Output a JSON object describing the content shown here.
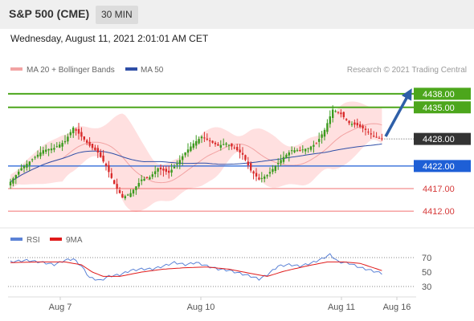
{
  "header": {
    "title": "S&P 500 (CME)",
    "timeframe": "30 MIN"
  },
  "datetime": "Wednesday, August 11, 2021 2:01:01 AM CET",
  "legend": {
    "ma20_label": "MA 20 + Bollinger Bands",
    "ma50_label": "MA 50",
    "credit": "Research © 2021 Trading Central",
    "rsi_label": "RSI",
    "rsi_ma_label": "9MA"
  },
  "colors": {
    "bullish": "#3a9b1e",
    "bearish": "#d92b2b",
    "bollinger": "#ffd6d6",
    "ma20": "#f2a3a3",
    "ma50": "#2f4fa7",
    "resistance": "#4ca61c",
    "pivot": "#1e5fd6",
    "support": "#f27070",
    "arrow": "#2e5fa8",
    "rsi": "#5b82d6",
    "rsi_ma": "#e01a1a"
  },
  "chart_data": [
    {
      "type": "candlestick",
      "ylim": [
        4409,
        4441
      ],
      "xlabels": [
        "Aug 7",
        "Aug 10",
        "Aug 11",
        "Aug 16"
      ],
      "levels": [
        {
          "value": 4438.0,
          "label": "4438.00",
          "kind": "resistance"
        },
        {
          "value": 4435.0,
          "label": "4435.00",
          "kind": "resistance"
        },
        {
          "value": 4428.0,
          "label": "4428.00",
          "kind": "last"
        },
        {
          "value": 4422.0,
          "label": "4422.00",
          "kind": "pivot"
        },
        {
          "value": 4417.0,
          "label": "4417.00",
          "kind": "support"
        },
        {
          "value": 4412.0,
          "label": "4412.00",
          "kind": "support"
        }
      ],
      "anchors": [
        [
          0,
          4418.5
        ],
        [
          4,
          4421.5
        ],
        [
          8,
          4423.5
        ],
        [
          12,
          4425.5
        ],
        [
          16,
          4426
        ],
        [
          20,
          4427.5
        ],
        [
          23,
          4430.5
        ],
        [
          26,
          4428.5
        ],
        [
          29,
          4426.5
        ],
        [
          32,
          4425
        ],
        [
          35,
          4422
        ],
        [
          38,
          4418
        ],
        [
          41,
          4415
        ],
        [
          44,
          4416
        ],
        [
          48,
          4419
        ],
        [
          51,
          4419.5
        ],
        [
          54,
          4421.5
        ],
        [
          58,
          4420.5
        ],
        [
          61,
          4422.5
        ],
        [
          64,
          4425
        ],
        [
          67,
          4427
        ],
        [
          70,
          4428.5
        ],
        [
          73,
          4427.5
        ],
        [
          76,
          4426.5
        ],
        [
          79,
          4427
        ],
        [
          82,
          4426
        ],
        [
          85,
          4424.5
        ],
        [
          88,
          4421
        ],
        [
          91,
          4419
        ],
        [
          94,
          4420
        ],
        [
          97,
          4422
        ],
        [
          100,
          4424
        ],
        [
          103,
          4425.5
        ],
        [
          106,
          4425.5
        ],
        [
          109,
          4426
        ],
        [
          112,
          4427
        ],
        [
          115,
          4430
        ],
        [
          118,
          4434.5
        ],
        [
          121,
          4433.5
        ],
        [
          124,
          4431.5
        ],
        [
          127,
          4431
        ],
        [
          130,
          4430
        ],
        [
          133,
          4428.5
        ],
        [
          136,
          4428
        ]
      ],
      "rsi": {
        "ylim": [
          20,
          80
        ],
        "ticks": [
          70,
          50,
          30
        ],
        "anchors": [
          [
            0,
            64
          ],
          [
            6,
            66
          ],
          [
            12,
            63
          ],
          [
            16,
            60
          ],
          [
            20,
            66
          ],
          [
            23,
            68
          ],
          [
            26,
            58
          ],
          [
            29,
            42
          ],
          [
            33,
            38
          ],
          [
            36,
            44
          ],
          [
            40,
            46
          ],
          [
            44,
            52
          ],
          [
            48,
            54
          ],
          [
            52,
            54
          ],
          [
            56,
            58
          ],
          [
            60,
            63
          ],
          [
            64,
            60
          ],
          [
            68,
            63
          ],
          [
            72,
            58
          ],
          [
            76,
            54
          ],
          [
            80,
            52
          ],
          [
            84,
            48
          ],
          [
            88,
            44
          ],
          [
            91,
            40
          ],
          [
            94,
            46
          ],
          [
            98,
            58
          ],
          [
            102,
            60
          ],
          [
            106,
            58
          ],
          [
            110,
            62
          ],
          [
            114,
            68
          ],
          [
            117,
            74
          ],
          [
            120,
            64
          ],
          [
            124,
            62
          ],
          [
            128,
            56
          ],
          [
            132,
            52
          ],
          [
            136,
            48
          ]
        ],
        "ma_anchors": [
          [
            0,
            63
          ],
          [
            10,
            64
          ],
          [
            20,
            64
          ],
          [
            26,
            60
          ],
          [
            30,
            50
          ],
          [
            34,
            44
          ],
          [
            40,
            44
          ],
          [
            48,
            50
          ],
          [
            56,
            54
          ],
          [
            64,
            56
          ],
          [
            72,
            57
          ],
          [
            80,
            54
          ],
          [
            88,
            48
          ],
          [
            94,
            44
          ],
          [
            100,
            51
          ],
          [
            108,
            58
          ],
          [
            116,
            64
          ],
          [
            122,
            64
          ],
          [
            128,
            62
          ],
          [
            136,
            52
          ]
        ]
      }
    }
  ]
}
